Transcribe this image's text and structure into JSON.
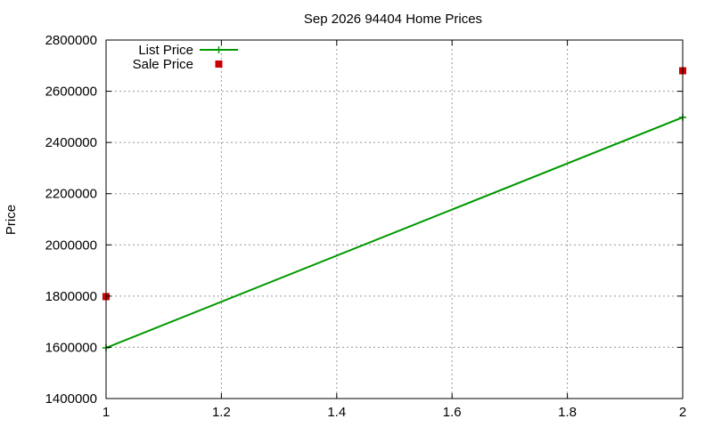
{
  "chart_data": {
    "type": "line",
    "title": "Sep 2026 94404 Home Prices",
    "xlabel": "",
    "ylabel": "Price",
    "xlim": [
      1,
      2
    ],
    "ylim": [
      1400000,
      2800000
    ],
    "xticks": [
      1,
      1.2,
      1.4,
      1.6,
      1.8,
      2
    ],
    "xtick_labels": [
      "1",
      "1.2",
      "1.4",
      "1.6",
      "1.8",
      "2"
    ],
    "yticks": [
      1400000,
      1600000,
      1800000,
      2000000,
      2200000,
      2400000,
      2600000,
      2800000
    ],
    "ytick_labels": [
      "1400000",
      "1600000",
      "1800000",
      "2000000",
      "2200000",
      "2400000",
      "2600000",
      "2800000"
    ],
    "grid": true,
    "legend_position": "top-left",
    "series": [
      {
        "name": "List Price",
        "style": "linespoints",
        "color": "#009900",
        "marker": "plus",
        "x": [
          1,
          2
        ],
        "y": [
          1598000,
          2498000
        ]
      },
      {
        "name": "Sale Price",
        "style": "points",
        "color": "#cc0000",
        "marker": "square",
        "x": [
          1,
          2
        ],
        "y": [
          1798000,
          2680000
        ]
      }
    ]
  }
}
